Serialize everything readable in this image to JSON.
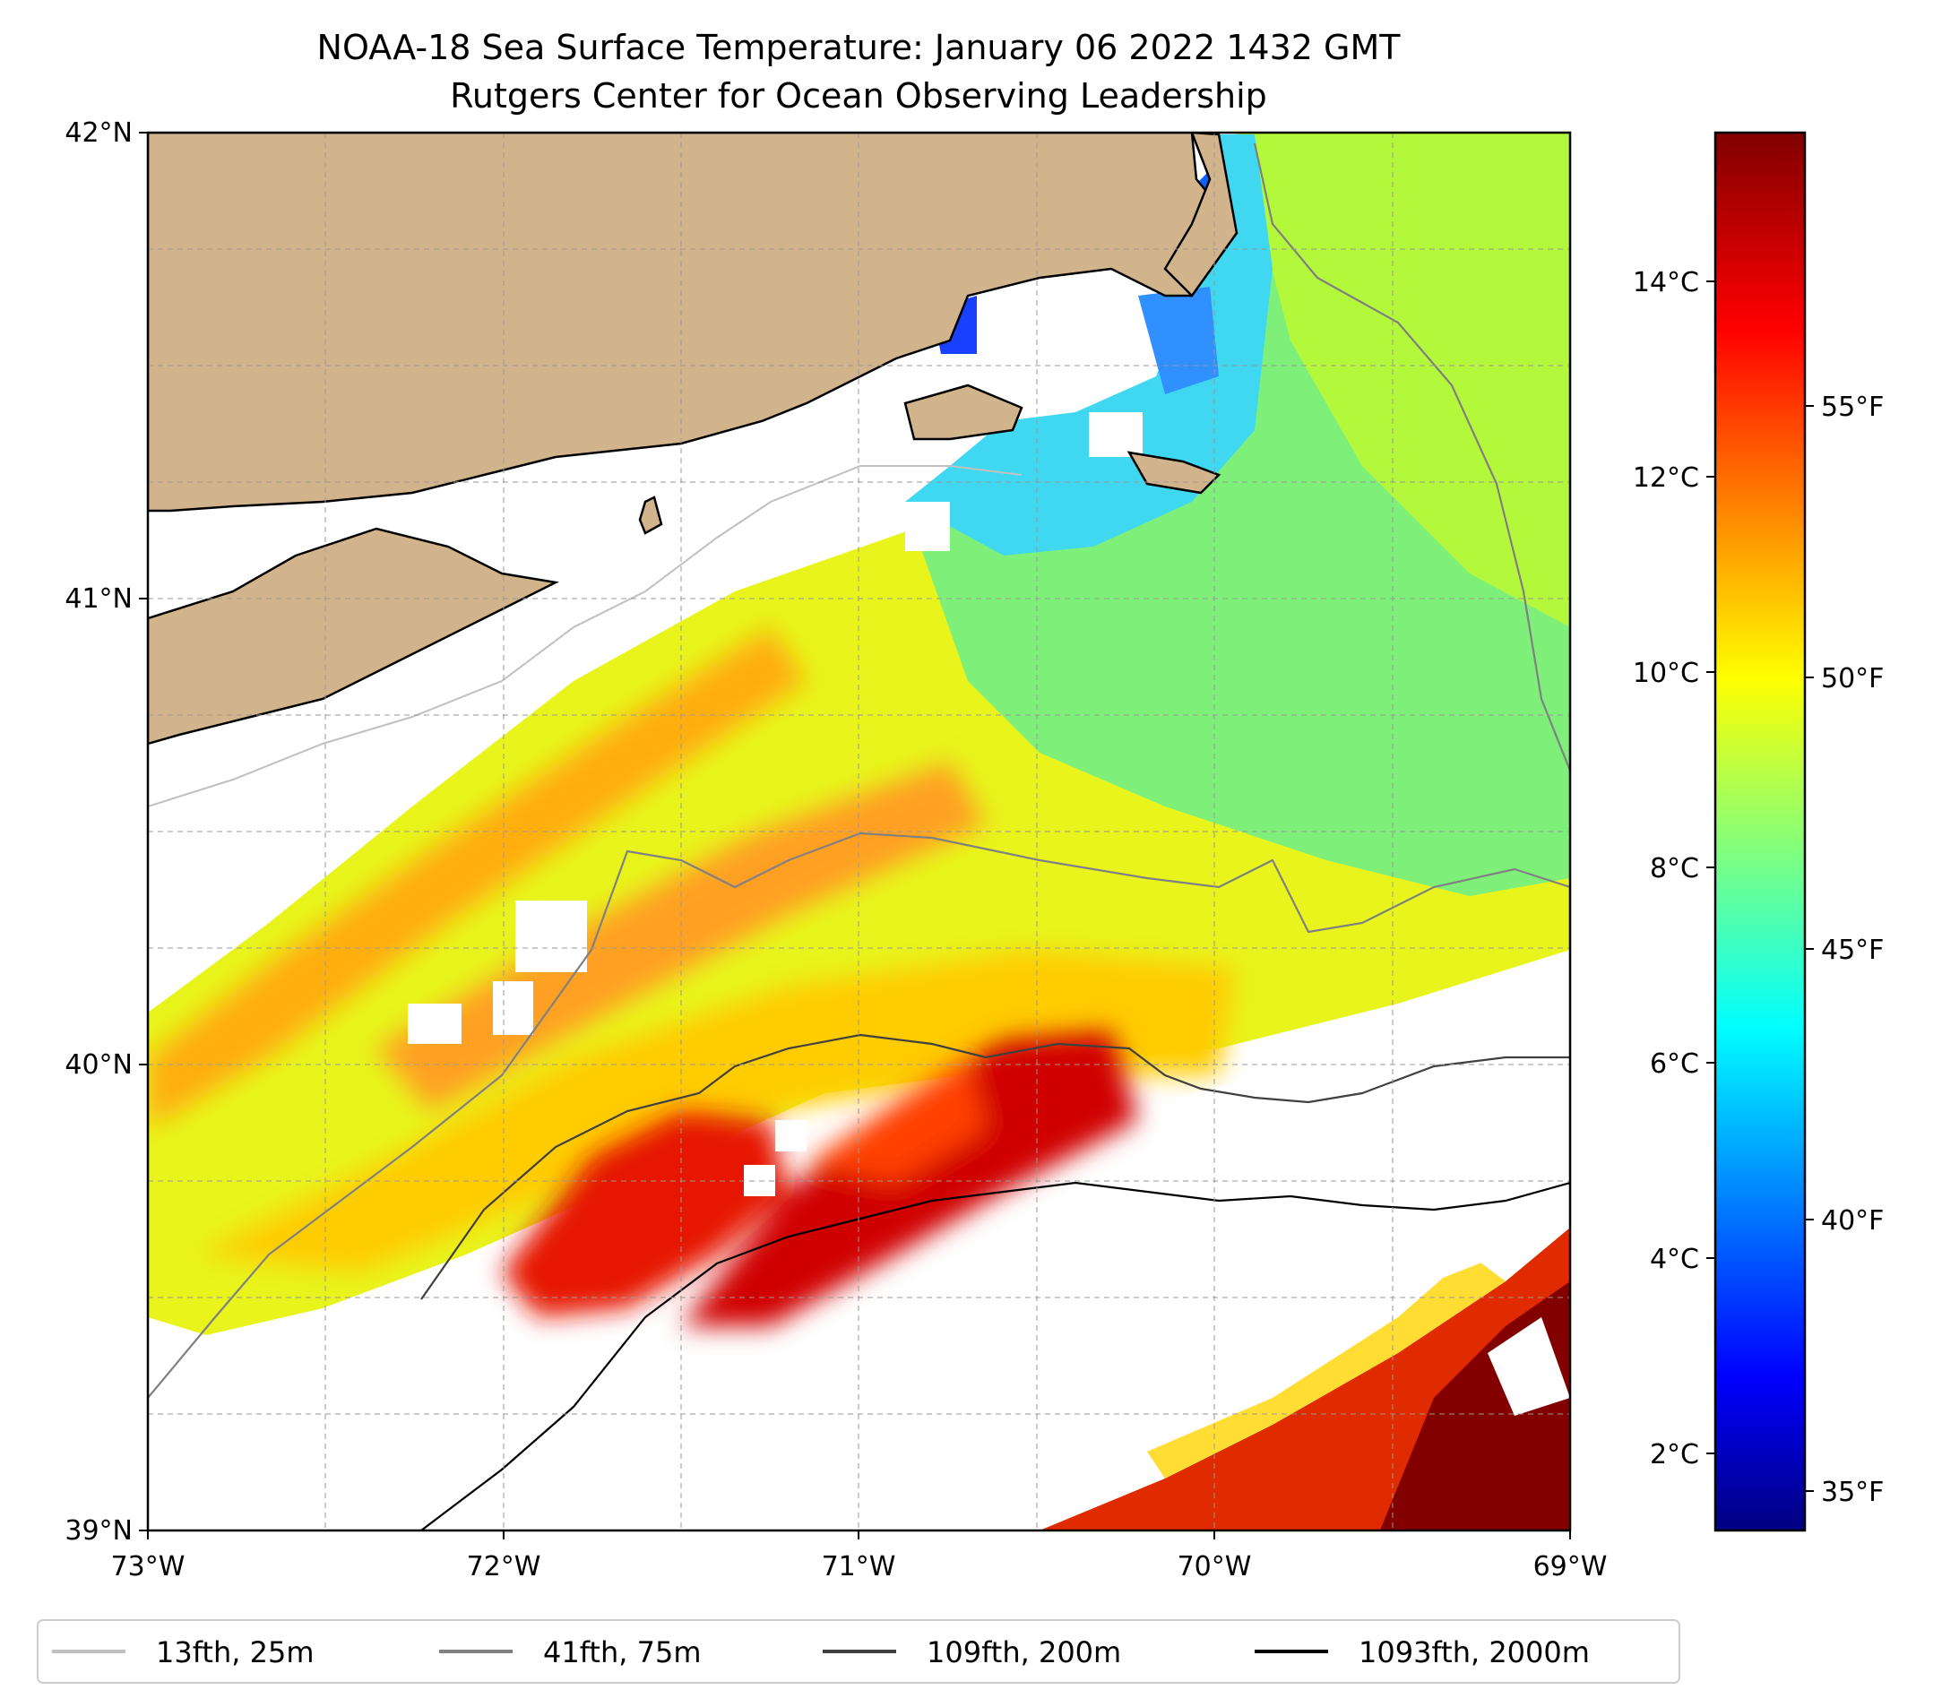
{
  "title": {
    "line1": "NOAA-18 Sea Surface Temperature: January 06 2022 1432 GMT",
    "line2": "Rutgers Center for Ocean Observing Leadership"
  },
  "map": {
    "lon_range": [
      -73,
      -69
    ],
    "lat_range": [
      39,
      42
    ],
    "x_ticks": [
      "73°W",
      "72°W",
      "71°W",
      "70°W",
      "69°W"
    ],
    "y_ticks": [
      "42°N",
      "41°N",
      "40°N",
      "39°N"
    ],
    "land_color": "#d2b48c"
  },
  "colorbar": {
    "celsius_ticks": [
      "14°C",
      "12°C",
      "10°C",
      "8°C",
      "6°C",
      "4°C",
      "2°C"
    ],
    "fahrenheit_ticks": [
      "55°F",
      "50°F",
      "45°F",
      "40°F",
      "35°F"
    ],
    "celsius_range": [
      1.3,
      15.6
    ],
    "colormap": "jet"
  },
  "legend": {
    "items": [
      {
        "label": "13fth, 25m",
        "color": "#c0c0c0"
      },
      {
        "label": "41fth, 75m",
        "color": "#808080"
      },
      {
        "label": "109fth, 200m",
        "color": "#404040"
      },
      {
        "label": "1093fth, 2000m",
        "color": "#000000"
      }
    ]
  }
}
